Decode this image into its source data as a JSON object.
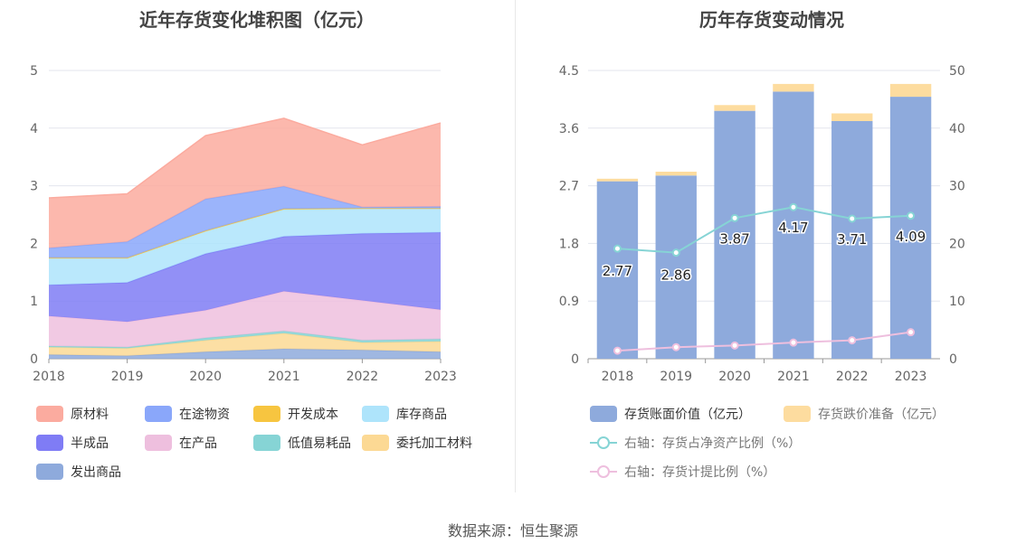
{
  "footer": {
    "source": "数据来源：恒生聚源"
  },
  "chart_data": [
    {
      "type": "area",
      "stacked": true,
      "title": "近年存货变化堆积图（亿元）",
      "categories": [
        "2018",
        "2019",
        "2020",
        "2021",
        "2022",
        "2023"
      ],
      "ylim": [
        0,
        5
      ],
      "yticks": [
        "0",
        "1",
        "2",
        "3",
        "4",
        "5"
      ],
      "grid": true,
      "legend_position": "bottom",
      "series": [
        {
          "name": "发出商品",
          "color": "#8eaadc",
          "values": [
            0.07,
            0.05,
            0.12,
            0.17,
            0.15,
            0.12
          ]
        },
        {
          "name": "委托加工材料",
          "color": "#fcd994",
          "values": [
            0.13,
            0.13,
            0.2,
            0.27,
            0.13,
            0.18
          ]
        },
        {
          "name": "低值易耗品",
          "color": "#86d4d5",
          "values": [
            0.02,
            0.02,
            0.04,
            0.04,
            0.04,
            0.04
          ]
        },
        {
          "name": "在产品",
          "color": "#eebfde",
          "values": [
            0.52,
            0.44,
            0.48,
            0.69,
            0.69,
            0.51
          ]
        },
        {
          "name": "半成品",
          "color": "#7f7cf5",
          "values": [
            0.54,
            0.68,
            0.98,
            0.95,
            1.16,
            1.34
          ]
        },
        {
          "name": "库存商品",
          "color": "#aee4fb",
          "values": [
            0.47,
            0.43,
            0.4,
            0.48,
            0.44,
            0.42
          ]
        },
        {
          "name": "开发成本",
          "color": "#f7c540",
          "values": [
            0,
            0,
            0,
            0,
            0,
            0
          ]
        },
        {
          "name": "在途物资",
          "color": "#8aa7fa",
          "values": [
            0.17,
            0.28,
            0.55,
            0.39,
            0.02,
            0.03
          ]
        },
        {
          "name": "原材料",
          "color": "#fbab9f",
          "values": [
            0.87,
            0.83,
            1.1,
            1.18,
            1.08,
            1.45
          ]
        }
      ],
      "legend_order": [
        "原材料",
        "在途物资",
        "开发成本",
        "库存商品",
        "半成品",
        "在产品",
        "低值易耗品",
        "委托加工材料",
        "发出商品"
      ]
    },
    {
      "type": "bar",
      "stacked": true,
      "title": "历年存货变动情况",
      "categories": [
        "2018",
        "2019",
        "2020",
        "2021",
        "2022",
        "2023"
      ],
      "ylim": [
        0,
        4.5
      ],
      "yticks": [
        "0",
        "0.9",
        "1.8",
        "2.7",
        "3.6",
        "4.5"
      ],
      "y2lim": [
        0,
        50
      ],
      "y2ticks": [
        "0",
        "10",
        "20",
        "30",
        "40",
        "50"
      ],
      "grid": true,
      "legend_position": "bottom",
      "series": [
        {
          "name": "存货账面价值（亿元）",
          "color": "#8eaadc",
          "values": [
            2.77,
            2.86,
            3.87,
            4.17,
            3.71,
            4.09
          ],
          "labels": [
            "2.77",
            "2.86",
            "3.87",
            "4.17",
            "3.71",
            "4.09"
          ]
        },
        {
          "name": "存货跌价准备（亿元）",
          "color": "#fddc9f",
          "values": [
            0.04,
            0.06,
            0.09,
            0.12,
            0.12,
            0.2
          ]
        }
      ],
      "line_series": [
        {
          "name": "右轴：存货占净资产比例（%）",
          "color": "#86d4d5",
          "axis": "right",
          "values": [
            19.1,
            18.4,
            24.4,
            26.3,
            24.3,
            24.8
          ]
        },
        {
          "name": "右轴：存货计提比例（%）",
          "color": "#eebfde",
          "axis": "right",
          "values": [
            1.4,
            2.0,
            2.3,
            2.8,
            3.2,
            4.6
          ]
        }
      ]
    }
  ]
}
